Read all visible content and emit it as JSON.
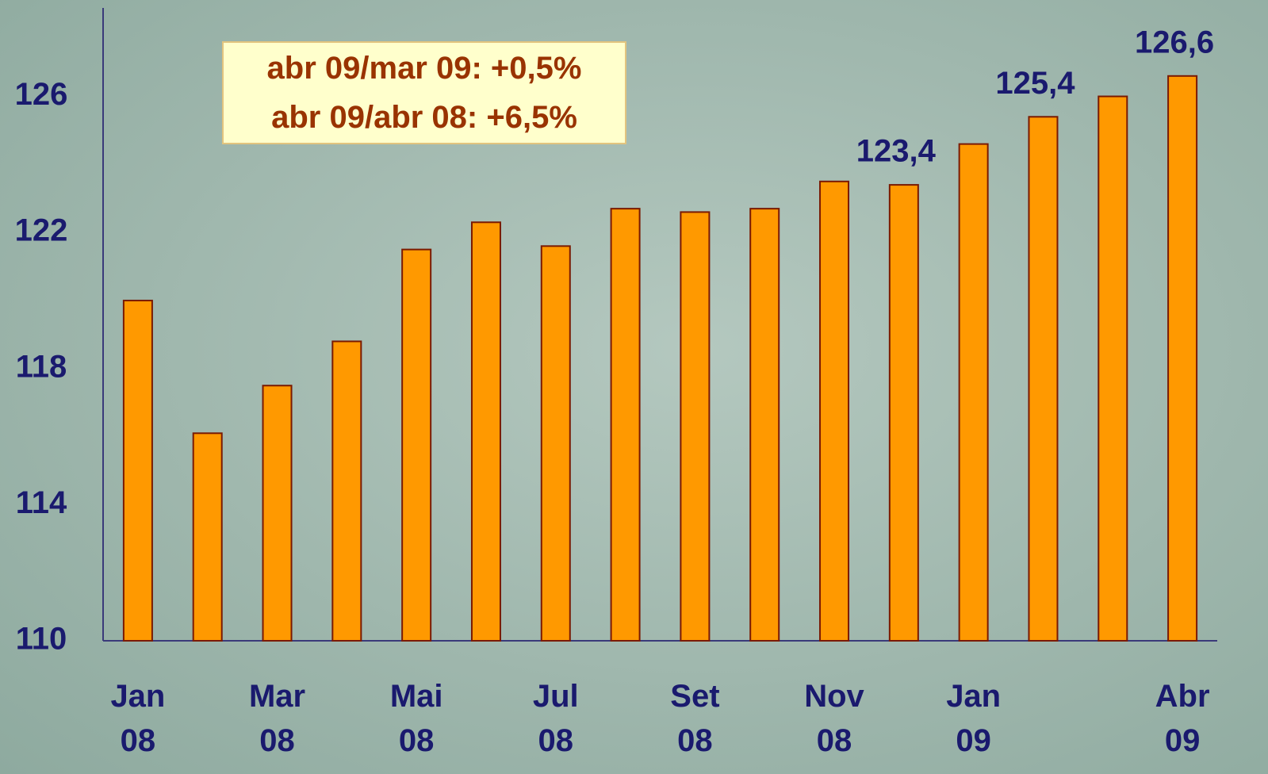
{
  "chart_data": {
    "type": "bar",
    "annotations": [
      "abr 09/mar 09: +0,5%",
      "abr 09/abr 08: +6,5%"
    ],
    "categories": [
      "Jan 08",
      null,
      "Mar 08",
      null,
      "Mai 08",
      null,
      "Jul 08",
      null,
      "Set 08",
      null,
      "Nov 08",
      null,
      "Jan 09",
      null,
      null,
      "Abr 09"
    ],
    "values": [
      120.0,
      116.1,
      117.5,
      118.8,
      121.5,
      122.3,
      121.6,
      122.7,
      122.6,
      122.7,
      123.5,
      123.4,
      124.6,
      125.4,
      126.0,
      126.6
    ],
    "value_labels": [
      null,
      null,
      null,
      null,
      null,
      null,
      null,
      null,
      null,
      null,
      null,
      "123,4",
      null,
      "125,4",
      null,
      "126,6"
    ],
    "color": "#ff9900",
    "ylim": [
      110,
      128.6
    ],
    "yticks": [
      110,
      114,
      118,
      122,
      126
    ],
    "grid": false
  }
}
